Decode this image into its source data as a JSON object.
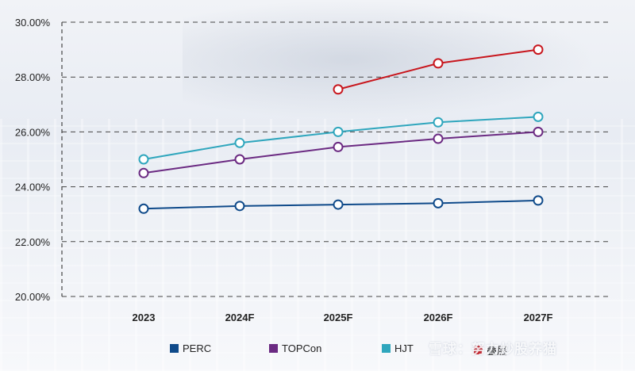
{
  "chart_data": {
    "type": "line",
    "title": "",
    "xlabel": "",
    "ylabel": "",
    "categories": [
      "2023",
      "2024F",
      "2025F",
      "2026F",
      "2027F"
    ],
    "ylim": [
      0.2,
      0.3
    ],
    "yticks": [
      "20.00%",
      "22.00%",
      "24.00%",
      "26.00%",
      "28.00%",
      "30.00%"
    ],
    "grid": "horizontal dashed",
    "legend_position": "bottom",
    "series": [
      {
        "name": "PERC",
        "color": "#0f4a8a",
        "values": [
          0.232,
          0.233,
          0.2335,
          0.234,
          0.235
        ]
      },
      {
        "name": "TOPCon",
        "color": "#6b2a82",
        "values": [
          0.245,
          0.25,
          0.2545,
          0.2575,
          0.26
        ]
      },
      {
        "name": "HJT",
        "color": "#2fa6bd",
        "values": [
          0.25,
          0.256,
          0.26,
          0.2635,
          0.2655
        ]
      },
      {
        "name": "叠层",
        "color": "#c8161d",
        "values": [
          null,
          null,
          0.2755,
          0.285,
          0.29
        ]
      }
    ]
  },
  "watermark": "雪球：努力炒股养猫"
}
